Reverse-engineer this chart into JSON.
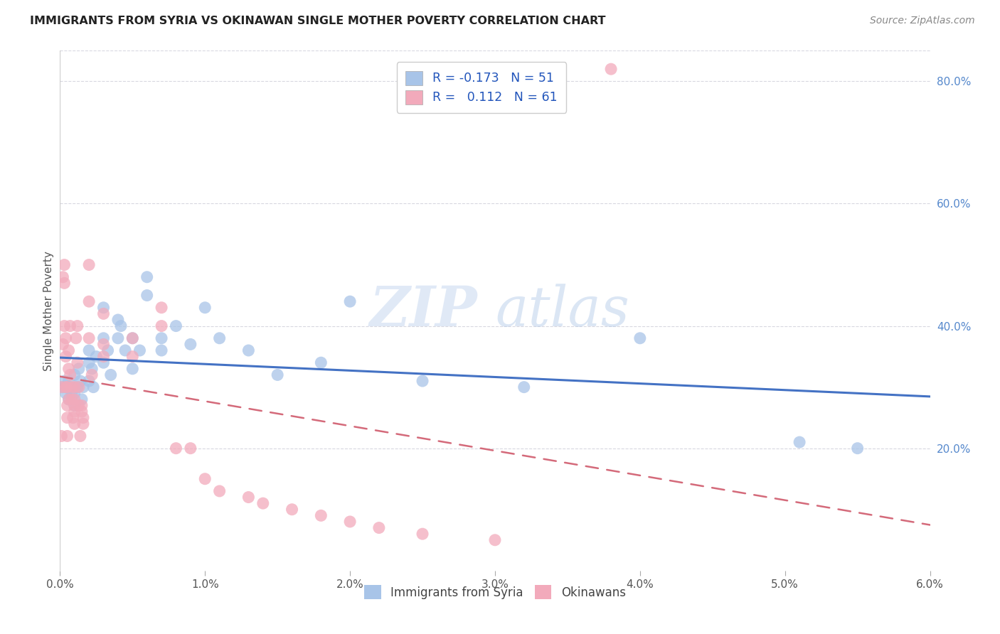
{
  "title": "IMMIGRANTS FROM SYRIA VS OKINAWAN SINGLE MOTHER POVERTY CORRELATION CHART",
  "source": "Source: ZipAtlas.com",
  "ylabel": "Single Mother Poverty",
  "watermark_zip": "ZIP",
  "watermark_atlas": "atlas",
  "legend_label1": "Immigrants from Syria",
  "legend_label2": "Okinawans",
  "R1": -0.173,
  "N1": 51,
  "R2": 0.112,
  "N2": 61,
  "color_blue": "#A8C4E8",
  "color_pink": "#F2AABB",
  "color_blue_line": "#4472C4",
  "color_pink_line": "#D46A7A",
  "xmin": 0.0,
  "xmax": 0.06,
  "ymin": 0.0,
  "ymax": 0.85,
  "xticks": [
    0.0,
    0.01,
    0.02,
    0.03,
    0.04,
    0.05,
    0.06
  ],
  "xtick_labels": [
    "0.0%",
    "1.0%",
    "2.0%",
    "3.0%",
    "4.0%",
    "5.0%",
    "6.0%"
  ],
  "yticks_right": [
    0.2,
    0.4,
    0.6,
    0.8
  ],
  "ytick_labels_right": [
    "20.0%",
    "40.0%",
    "60.0%",
    "80.0%"
  ],
  "blue_points_x": [
    0.0002,
    0.0003,
    0.0004,
    0.0005,
    0.0006,
    0.0006,
    0.0007,
    0.0008,
    0.001,
    0.001,
    0.001,
    0.0012,
    0.0013,
    0.0014,
    0.0015,
    0.0016,
    0.002,
    0.002,
    0.002,
    0.0022,
    0.0023,
    0.0025,
    0.003,
    0.003,
    0.003,
    0.0033,
    0.0035,
    0.004,
    0.004,
    0.0042,
    0.0045,
    0.005,
    0.005,
    0.0055,
    0.006,
    0.006,
    0.007,
    0.007,
    0.008,
    0.009,
    0.01,
    0.011,
    0.013,
    0.015,
    0.018,
    0.02,
    0.025,
    0.032,
    0.04,
    0.051,
    0.055
  ],
  "blue_points_y": [
    0.3,
    0.31,
    0.29,
    0.3,
    0.28,
    0.31,
    0.3,
    0.29,
    0.32,
    0.29,
    0.27,
    0.3,
    0.33,
    0.31,
    0.28,
    0.3,
    0.36,
    0.34,
    0.31,
    0.33,
    0.3,
    0.35,
    0.43,
    0.38,
    0.34,
    0.36,
    0.32,
    0.41,
    0.38,
    0.4,
    0.36,
    0.38,
    0.33,
    0.36,
    0.48,
    0.45,
    0.38,
    0.36,
    0.4,
    0.37,
    0.43,
    0.38,
    0.36,
    0.32,
    0.34,
    0.44,
    0.31,
    0.3,
    0.38,
    0.21,
    0.2
  ],
  "pink_points_x": [
    0.0001,
    0.0001,
    0.0002,
    0.0002,
    0.0003,
    0.0003,
    0.0003,
    0.0004,
    0.0004,
    0.0004,
    0.0005,
    0.0005,
    0.0005,
    0.0005,
    0.0006,
    0.0006,
    0.0006,
    0.0007,
    0.0007,
    0.0008,
    0.0008,
    0.0009,
    0.001,
    0.001,
    0.001,
    0.001,
    0.001,
    0.0011,
    0.0012,
    0.0012,
    0.0013,
    0.0013,
    0.0014,
    0.0015,
    0.0015,
    0.0016,
    0.0016,
    0.002,
    0.002,
    0.002,
    0.0022,
    0.003,
    0.003,
    0.003,
    0.005,
    0.005,
    0.007,
    0.007,
    0.008,
    0.009,
    0.01,
    0.011,
    0.013,
    0.014,
    0.016,
    0.018,
    0.02,
    0.022,
    0.025,
    0.03,
    0.038
  ],
  "pink_points_y": [
    0.3,
    0.22,
    0.48,
    0.37,
    0.5,
    0.47,
    0.4,
    0.38,
    0.35,
    0.3,
    0.3,
    0.27,
    0.25,
    0.22,
    0.36,
    0.33,
    0.28,
    0.4,
    0.32,
    0.3,
    0.28,
    0.25,
    0.3,
    0.28,
    0.27,
    0.26,
    0.24,
    0.38,
    0.4,
    0.34,
    0.3,
    0.27,
    0.22,
    0.27,
    0.26,
    0.25,
    0.24,
    0.5,
    0.44,
    0.38,
    0.32,
    0.42,
    0.37,
    0.35,
    0.38,
    0.35,
    0.43,
    0.4,
    0.2,
    0.2,
    0.15,
    0.13,
    0.12,
    0.11,
    0.1,
    0.09,
    0.08,
    0.07,
    0.06,
    0.05,
    0.82
  ],
  "background_color": "#FFFFFF",
  "grid_color": "#D8D8E0"
}
